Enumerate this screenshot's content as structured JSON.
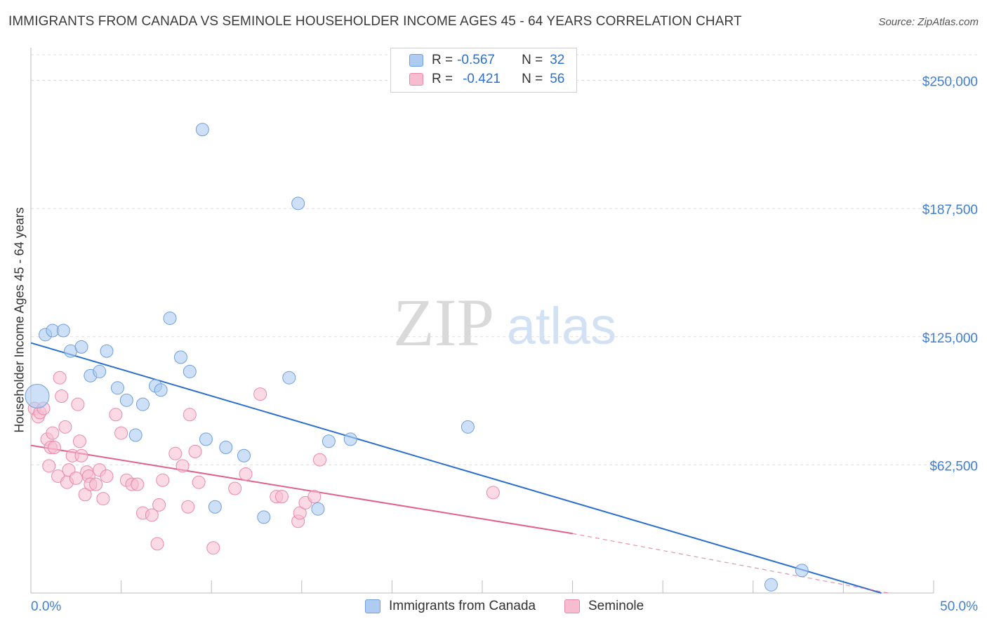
{
  "title": "IMMIGRANTS FROM CANADA VS SEMINOLE HOUSEHOLDER INCOME AGES 45 - 64 YEARS CORRELATION CHART",
  "source": "Source: ZipAtlas.com",
  "watermark": {
    "zip": "ZIP",
    "atlas": "atlas"
  },
  "legend": [
    {
      "r_label": "R =",
      "r_value": "-0.567",
      "n_label": "N =",
      "n_value": "32"
    },
    {
      "r_label": "R =",
      "r_value": "-0.421",
      "n_label": "N =",
      "n_value": "56"
    }
  ],
  "colors": {
    "blue_fill": "#aeccf2",
    "blue_stroke": "#6f9fdc",
    "blue_line": "#2a6fd0",
    "pink_fill": "#f7bcd0",
    "pink_stroke": "#e989aa",
    "pink_line": "#e2608c",
    "axis_text": "#3f7fd4",
    "grid": "#dddddd"
  },
  "chart_data": {
    "type": "scatter",
    "title": "IMMIGRANTS FROM CANADA VS SEMINOLE HOUSEHOLDER INCOME AGES 45 - 64 YEARS CORRELATION CHART",
    "xlabel": "",
    "ylabel": "Householder Income Ages 45 - 64 years",
    "xlim": [
      0,
      50
    ],
    "ylim": [
      0,
      262500
    ],
    "x_tick_labels": [
      "0.0%",
      "50.0%"
    ],
    "y_ticks": [
      62500,
      125000,
      187500,
      250000
    ],
    "y_tick_labels": [
      "$62,500",
      "$125,000",
      "$187,500",
      "$250,000"
    ],
    "grid": true,
    "legend_position": "top-center",
    "series": [
      {
        "name": "Immigrants from Canada",
        "color": "#aeccf2",
        "r": -0.567,
        "n": 32,
        "trend": {
          "x": [
            0,
            47.1
          ],
          "y": [
            122000,
            0
          ],
          "dashed_to_x": 47.1
        },
        "points": [
          [
            0.35,
            96000,
            1
          ],
          [
            0.8,
            126000,
            0
          ],
          [
            1.2,
            128000,
            0
          ],
          [
            1.8,
            128000,
            0
          ],
          [
            2.2,
            118000,
            0
          ],
          [
            2.8,
            120000,
            0
          ],
          [
            3.3,
            106000,
            0
          ],
          [
            3.8,
            108000,
            0
          ],
          [
            4.2,
            118000,
            0
          ],
          [
            4.8,
            100000,
            0
          ],
          [
            5.3,
            94000,
            0
          ],
          [
            5.8,
            77000,
            0
          ],
          [
            6.2,
            92000,
            0
          ],
          [
            6.9,
            101000,
            0
          ],
          [
            7.2,
            99000,
            0
          ],
          [
            7.7,
            134000,
            0
          ],
          [
            8.3,
            115000,
            0
          ],
          [
            8.8,
            108000,
            0
          ],
          [
            9.5,
            226000,
            0
          ],
          [
            9.7,
            75000,
            0
          ],
          [
            10.2,
            42000,
            0
          ],
          [
            10.8,
            71000,
            0
          ],
          [
            11.8,
            67000,
            0
          ],
          [
            12.9,
            37000,
            0
          ],
          [
            14.3,
            105000,
            0
          ],
          [
            14.8,
            190000,
            0
          ],
          [
            15.9,
            41000,
            0
          ],
          [
            16.5,
            74000,
            0
          ],
          [
            17.7,
            75000,
            0
          ],
          [
            24.2,
            81000,
            0
          ],
          [
            41.0,
            4000,
            0
          ],
          [
            42.7,
            11000,
            0
          ]
        ]
      },
      {
        "name": "Seminole",
        "color": "#f7bcd0",
        "r": -0.421,
        "n": 56,
        "trend": {
          "x": [
            0,
            30
          ],
          "y": [
            72000,
            29000
          ],
          "dashed_to_x": 47.5,
          "dashed_to_y": 0
        },
        "points": [
          [
            0.2,
            90000
          ],
          [
            0.4,
            86000
          ],
          [
            0.5,
            88000
          ],
          [
            0.7,
            90000
          ],
          [
            0.9,
            75000
          ],
          [
            1.0,
            62000
          ],
          [
            1.1,
            71000
          ],
          [
            1.2,
            78000
          ],
          [
            1.3,
            71000
          ],
          [
            1.5,
            57000
          ],
          [
            1.6,
            105000
          ],
          [
            1.7,
            96000
          ],
          [
            1.9,
            81000
          ],
          [
            2.0,
            54000
          ],
          [
            2.1,
            60000
          ],
          [
            2.3,
            67000
          ],
          [
            2.5,
            56000
          ],
          [
            2.6,
            92000
          ],
          [
            2.7,
            74000
          ],
          [
            2.8,
            67000
          ],
          [
            3.0,
            48000
          ],
          [
            3.1,
            59000
          ],
          [
            3.2,
            57000
          ],
          [
            3.3,
            53000
          ],
          [
            3.6,
            53000
          ],
          [
            3.8,
            60000
          ],
          [
            4.0,
            46000
          ],
          [
            4.2,
            57000
          ],
          [
            4.7,
            87000
          ],
          [
            5.0,
            78000
          ],
          [
            5.3,
            55000
          ],
          [
            5.6,
            53000
          ],
          [
            5.9,
            53000
          ],
          [
            6.2,
            39000
          ],
          [
            6.7,
            38000
          ],
          [
            7.0,
            24000
          ],
          [
            7.1,
            43000
          ],
          [
            7.3,
            55000
          ],
          [
            8.0,
            68000
          ],
          [
            8.4,
            62000
          ],
          [
            8.7,
            42000
          ],
          [
            8.8,
            87000
          ],
          [
            9.1,
            69000
          ],
          [
            9.3,
            54000
          ],
          [
            10.1,
            22000
          ],
          [
            11.3,
            51000
          ],
          [
            11.9,
            58000
          ],
          [
            12.7,
            97000
          ],
          [
            13.6,
            47000
          ],
          [
            13.9,
            47000
          ],
          [
            14.8,
            35000
          ],
          [
            14.9,
            39000
          ],
          [
            15.2,
            44000
          ],
          [
            15.7,
            47000
          ],
          [
            16.0,
            65000
          ],
          [
            25.6,
            49000
          ]
        ]
      }
    ]
  },
  "bottom_legend": [
    "Immigrants from Canada",
    "Seminole"
  ]
}
